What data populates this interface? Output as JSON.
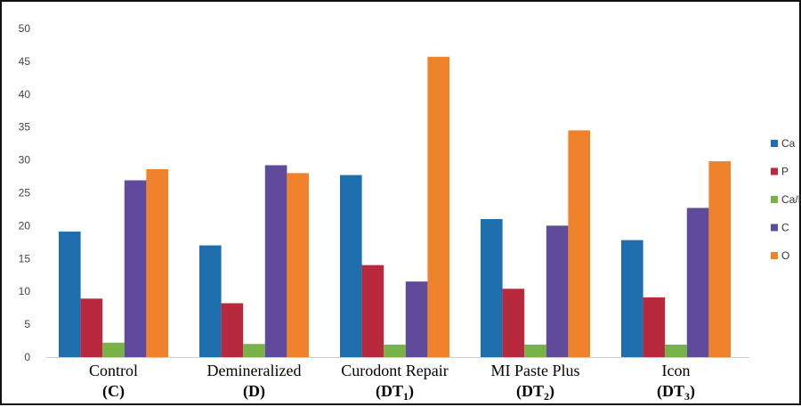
{
  "chart_data": {
    "type": "bar",
    "categories": [
      {
        "line1": "Control",
        "line2": "(C)",
        "sub": ""
      },
      {
        "line1": "Demineralized",
        "line2": "(D)",
        "sub": ""
      },
      {
        "line1": "Curodont Repair",
        "line2": "(DT",
        "sub": "1",
        "close": ")"
      },
      {
        "line1": "MI Paste Plus",
        "line2": "(DT",
        "sub": "2",
        "close": ")"
      },
      {
        "line1": "Icon",
        "line2": "(DT",
        "sub": "3",
        "close": ")"
      }
    ],
    "series": [
      {
        "name": "Ca",
        "color": "#1f6fae",
        "values": [
          19.1,
          17.0,
          27.7,
          21.0,
          17.8
        ]
      },
      {
        "name": "P",
        "color": "#b8293d",
        "values": [
          8.9,
          8.2,
          14.0,
          10.4,
          9.1
        ]
      },
      {
        "name": "Ca/P",
        "color": "#77b347",
        "values": [
          2.2,
          2.0,
          1.9,
          1.9,
          1.9
        ]
      },
      {
        "name": "C",
        "color": "#5f4a9b",
        "values": [
          26.9,
          29.2,
          11.5,
          20.0,
          22.7
        ]
      },
      {
        "name": "O",
        "color": "#f0822b",
        "values": [
          28.6,
          28.0,
          45.7,
          34.5,
          29.8
        ]
      }
    ],
    "ylim": [
      0,
      50
    ],
    "yticks": [
      0,
      5,
      10,
      15,
      20,
      25,
      30,
      35,
      40,
      45,
      50
    ],
    "grid": false,
    "legend": "right",
    "title": "",
    "xlabel": "",
    "ylabel": ""
  }
}
